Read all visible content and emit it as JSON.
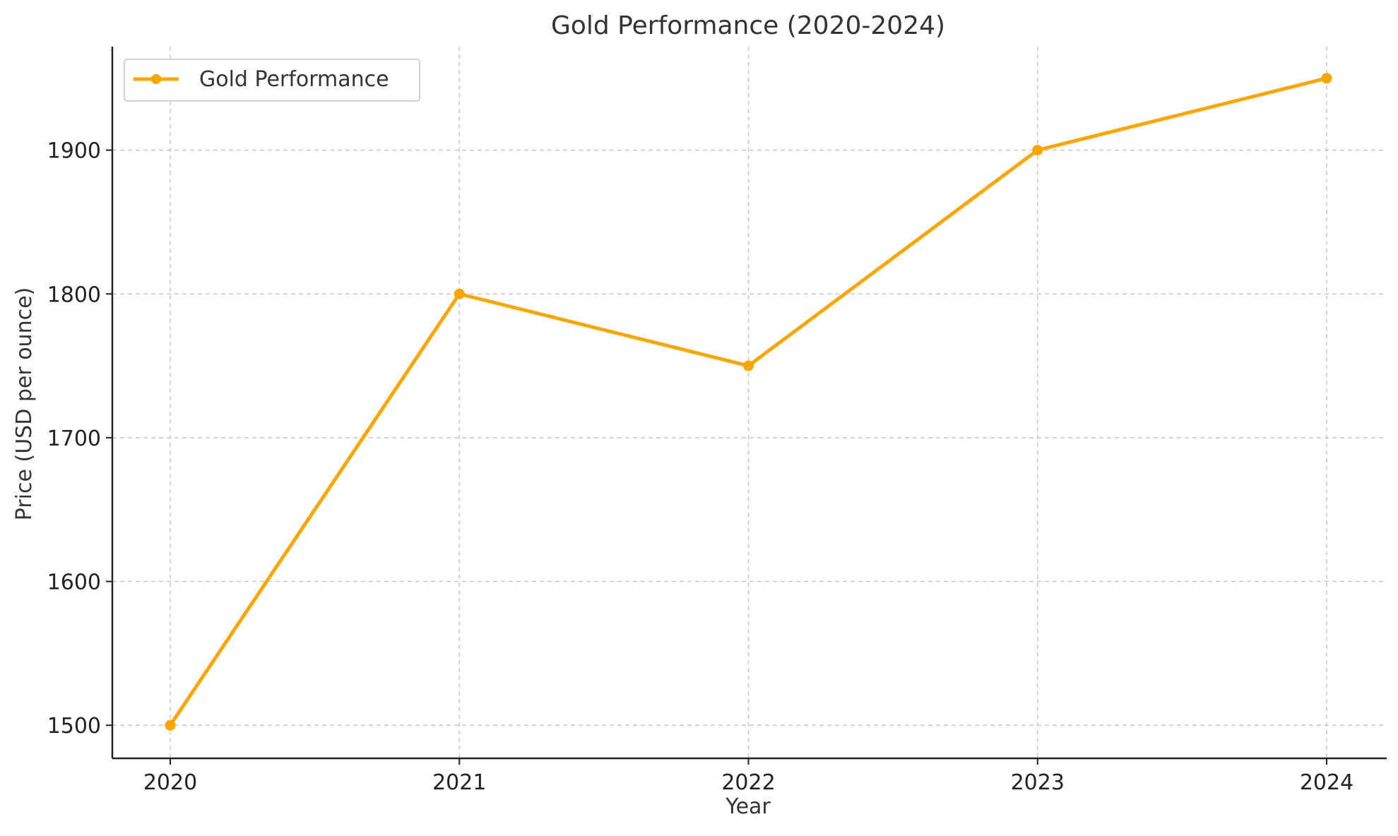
{
  "chart_data": {
    "type": "line",
    "title": "Gold Performance (2020-2024)",
    "xlabel": "Year",
    "ylabel": "Price (USD per ounce)",
    "categories": [
      "2020",
      "2021",
      "2022",
      "2023",
      "2024"
    ],
    "yticks": [
      "1500",
      "1600",
      "1700",
      "1800",
      "1900"
    ],
    "ylim": [
      1477,
      1972
    ],
    "grid": true,
    "grid_style": "dashed",
    "legend_position": "top-left",
    "series": [
      {
        "name": "Gold Performance",
        "color": "#FFA500",
        "marker": "circle",
        "values": [
          1500,
          1800,
          1750,
          1900,
          1950
        ]
      }
    ]
  }
}
